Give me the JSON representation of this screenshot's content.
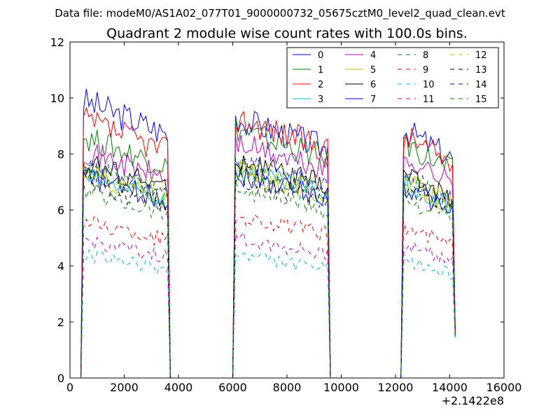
{
  "figure": {
    "suptitle": "Data file: modeM0/AS1A02_077T01_9000000732_05675cztM0_level2_quad_clean.evt",
    "x_offset_label": "+2.1422e8"
  },
  "chart_data": {
    "type": "line",
    "title": "Quadrant 2 module wise count rates with 100.0s bins.",
    "xlabel": "",
    "ylabel": "",
    "xlim": [
      0,
      16000
    ],
    "ylim": [
      0,
      12
    ],
    "x_ticks": [
      0,
      2000,
      4000,
      6000,
      8000,
      10000,
      12000,
      14000,
      16000
    ],
    "x_tick_labels": [
      "0",
      "2000",
      "4000",
      "6000",
      "8000",
      "10000",
      "12000",
      "14000",
      "16000"
    ],
    "y_ticks": [
      0,
      2,
      4,
      6,
      8,
      10,
      12
    ],
    "y_tick_labels": [
      "0",
      "2",
      "4",
      "6",
      "8",
      "10",
      "12"
    ],
    "x_offset": 214220000,
    "legend_position": "top-right",
    "grid": false,
    "segments": [
      {
        "start": 500,
        "end": 3600
      },
      {
        "start": 6100,
        "end": 9500
      },
      {
        "start": 12300,
        "end": 14100
      }
    ],
    "series": [
      {
        "name": "0",
        "color": "#0000ff",
        "dash": "solid",
        "levels": [
          9.9,
          9.3,
          8.9
        ]
      },
      {
        "name": "1",
        "color": "#008000",
        "dash": "solid",
        "levels": [
          8.6,
          8.9,
          8.4
        ]
      },
      {
        "name": "2",
        "color": "#ff0000",
        "dash": "solid",
        "levels": [
          9.2,
          9.3,
          8.7
        ]
      },
      {
        "name": "3",
        "color": "#00bfbf",
        "dash": "solid",
        "levels": [
          7.2,
          7.4,
          6.9
        ]
      },
      {
        "name": "4",
        "color": "#bf00bf",
        "dash": "solid",
        "levels": [
          8.1,
          8.4,
          7.9
        ]
      },
      {
        "name": "5",
        "color": "#bfbf00",
        "dash": "solid",
        "levels": [
          7.3,
          7.4,
          7.0
        ]
      },
      {
        "name": "6",
        "color": "#000000",
        "dash": "solid",
        "levels": [
          7.7,
          7.8,
          7.3
        ]
      },
      {
        "name": "7",
        "color": "#0000ff",
        "dash": "solid",
        "levels": [
          7.2,
          7.3,
          6.8
        ]
      },
      {
        "name": "8",
        "color": "#008000",
        "dash": "dashed",
        "levels": [
          6.7,
          6.8,
          6.4
        ]
      },
      {
        "name": "9",
        "color": "#ff0000",
        "dash": "dashed",
        "levels": [
          5.6,
          5.8,
          5.4
        ]
      },
      {
        "name": "10",
        "color": "#00bfbf",
        "dash": "dashed",
        "levels": [
          4.4,
          4.4,
          4.2
        ]
      },
      {
        "name": "11",
        "color": "#bf00bf",
        "dash": "dashed",
        "levels": [
          4.9,
          5.0,
          4.8
        ]
      },
      {
        "name": "12",
        "color": "#bfbf00",
        "dash": "dashed",
        "levels": [
          7.5,
          7.6,
          7.2
        ]
      },
      {
        "name": "13",
        "color": "#000000",
        "dash": "dashed",
        "levels": [
          7.0,
          7.1,
          6.8
        ]
      },
      {
        "name": "14",
        "color": "#0000ff",
        "dash": "dashed",
        "levels": [
          7.6,
          7.7,
          7.2
        ]
      },
      {
        "name": "15",
        "color": "#008000",
        "dash": "dashed",
        "levels": [
          7.4,
          7.5,
          7.1
        ]
      }
    ]
  }
}
